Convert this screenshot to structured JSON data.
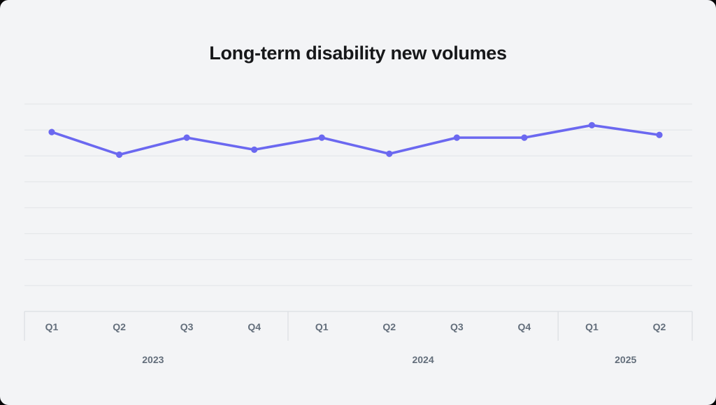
{
  "colors": {
    "card_background": "#f3f4f6",
    "gridline": "#e5e7ea",
    "axis": "#dcdfe3",
    "tick_label": "#636e7b",
    "title": "#17181a",
    "line": "#6b68f0"
  },
  "chart_data": {
    "type": "line",
    "title": "Long-term disability new volumes",
    "xlabel": "",
    "ylabel": "",
    "legend_position": "none",
    "grid": "horizontal",
    "gridline_count": 8,
    "y_axis_tick_labels_visible": false,
    "ylim": [
      0,
      100
    ],
    "value_scale_note": "y-axis is unlabeled in source; values estimated on relative 0-100 scale from gridlines",
    "categories": [
      "Q1",
      "Q2",
      "Q3",
      "Q4",
      "Q1",
      "Q2",
      "Q3",
      "Q4",
      "Q1",
      "Q2"
    ],
    "year_groups": [
      {
        "label": "2023",
        "quarter_count": 4
      },
      {
        "label": "2024",
        "quarter_count": 4
      },
      {
        "label": "2025",
        "quarter_count": 2
      }
    ],
    "series": [
      {
        "name": "Long-term disability new volumes",
        "values": [
          86.5,
          75.6,
          83.8,
          78.0,
          83.8,
          76.0,
          83.8,
          83.8,
          89.8,
          85.1
        ]
      }
    ]
  }
}
